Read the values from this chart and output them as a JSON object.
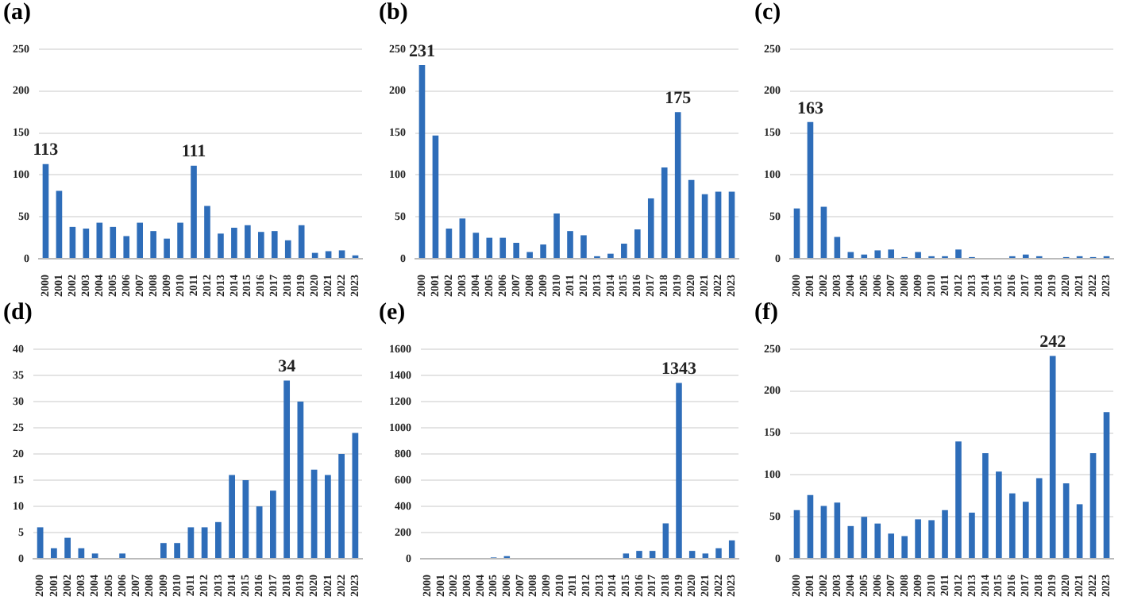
{
  "chart_data": [
    {
      "type": "bar",
      "title": "(a)",
      "categories": [
        "2000",
        "2001",
        "2002",
        "2003",
        "2004",
        "2005",
        "2006",
        "2007",
        "2008",
        "2009",
        "2010",
        "2011",
        "2012",
        "2013",
        "2014",
        "2015",
        "2016",
        "2017",
        "2018",
        "2019",
        "2020",
        "2021",
        "2022",
        "2023"
      ],
      "color": "#2e6db9",
      "values": [
        113,
        81,
        38,
        36,
        43,
        38,
        27,
        43,
        33,
        24,
        43,
        111,
        63,
        30,
        37,
        40,
        32,
        33,
        22,
        40,
        7,
        9,
        10,
        4
      ],
      "value_labels": [
        "113",
        null,
        null,
        null,
        null,
        null,
        null,
        null,
        null,
        null,
        null,
        "111",
        null,
        null,
        null,
        null,
        null,
        null,
        null,
        null,
        null,
        null,
        null,
        null
      ],
      "ylim": [
        0,
        250
      ],
      "yticks": [
        0,
        50,
        100,
        150,
        200,
        250
      ],
      "grid": "y"
    },
    {
      "type": "bar",
      "title": "(b)",
      "categories": [
        "2000",
        "2001",
        "2002",
        "2003",
        "2004",
        "2005",
        "2006",
        "2007",
        "2008",
        "2009",
        "2010",
        "2011",
        "2012",
        "2013",
        "2014",
        "2015",
        "2016",
        "2017",
        "2018",
        "2019",
        "2020",
        "2021",
        "2022",
        "2023"
      ],
      "color": "#2e6db9",
      "values": [
        231,
        147,
        36,
        48,
        31,
        25,
        25,
        19,
        8,
        17,
        54,
        33,
        28,
        3,
        6,
        18,
        35,
        72,
        109,
        175,
        94,
        77,
        80,
        80
      ],
      "value_labels": [
        "231",
        null,
        null,
        null,
        null,
        null,
        null,
        null,
        null,
        null,
        null,
        null,
        null,
        null,
        null,
        null,
        null,
        null,
        null,
        "175",
        null,
        null,
        null,
        null
      ],
      "ylim": [
        0,
        250
      ],
      "yticks": [
        0,
        50,
        100,
        150,
        200,
        250
      ],
      "grid": "y"
    },
    {
      "type": "bar",
      "title": "(c)",
      "categories": [
        "2000",
        "2001",
        "2002",
        "2003",
        "2004",
        "2005",
        "2006",
        "2007",
        "2008",
        "2009",
        "2010",
        "2011",
        "2012",
        "2013",
        "2014",
        "2015",
        "2016",
        "2017",
        "2018",
        "2019",
        "2020",
        "2021",
        "2022",
        "2023"
      ],
      "color": "#2e6db9",
      "values": [
        60,
        163,
        62,
        26,
        8,
        5,
        10,
        11,
        2,
        8,
        3,
        3,
        11,
        2,
        0,
        0,
        3,
        5,
        3,
        0,
        2,
        3,
        2,
        3
      ],
      "value_labels": [
        null,
        "163",
        null,
        null,
        null,
        null,
        null,
        null,
        null,
        null,
        null,
        null,
        null,
        null,
        null,
        null,
        null,
        null,
        null,
        null,
        null,
        null,
        null,
        null
      ],
      "ylim": [
        0,
        250
      ],
      "yticks": [
        0,
        50,
        100,
        150,
        200,
        250
      ],
      "grid": "y"
    },
    {
      "type": "bar",
      "title": "(d)",
      "categories": [
        "2000",
        "2001",
        "2002",
        "2003",
        "2004",
        "2005",
        "2006",
        "2007",
        "2008",
        "2009",
        "2010",
        "2011",
        "2012",
        "2013",
        "2014",
        "2015",
        "2016",
        "2017",
        "2018",
        "2019",
        "2020",
        "2021",
        "2022",
        "2023"
      ],
      "color": "#2e6db9",
      "values": [
        6,
        2,
        4,
        2,
        1,
        0,
        1,
        0,
        0,
        3,
        3,
        6,
        6,
        7,
        16,
        15,
        10,
        13,
        34,
        30,
        17,
        16,
        20,
        24
      ],
      "value_labels": [
        null,
        null,
        null,
        null,
        null,
        null,
        null,
        null,
        null,
        null,
        null,
        null,
        null,
        null,
        null,
        null,
        null,
        null,
        "34",
        null,
        null,
        null,
        null,
        null
      ],
      "ylim": [
        0,
        40
      ],
      "yticks": [
        0,
        5,
        10,
        15,
        20,
        25,
        30,
        35,
        40
      ],
      "grid": "y"
    },
    {
      "type": "bar",
      "title": "(e)",
      "categories": [
        "2000",
        "2001",
        "2002",
        "2003",
        "2004",
        "2005",
        "2006",
        "2007",
        "2008",
        "2009",
        "2010",
        "2011",
        "2012",
        "2013",
        "2014",
        "2015",
        "2016",
        "2017",
        "2018",
        "2019",
        "2020",
        "2021",
        "2022",
        "2023"
      ],
      "color": "#2e6db9",
      "values": [
        0,
        0,
        0,
        0,
        0,
        10,
        20,
        0,
        0,
        0,
        0,
        0,
        0,
        0,
        0,
        40,
        60,
        60,
        270,
        1343,
        60,
        40,
        80,
        140
      ],
      "value_labels": [
        null,
        null,
        null,
        null,
        null,
        null,
        null,
        null,
        null,
        null,
        null,
        null,
        null,
        null,
        null,
        null,
        null,
        null,
        null,
        "1343",
        null,
        null,
        null,
        null
      ],
      "ylim": [
        0,
        1600
      ],
      "yticks": [
        0,
        200,
        400,
        600,
        800,
        1000,
        1200,
        1400,
        1600
      ],
      "grid": "y"
    },
    {
      "type": "bar",
      "title": "(f)",
      "categories": [
        "2000",
        "2001",
        "2002",
        "2003",
        "2004",
        "2005",
        "2006",
        "2007",
        "2008",
        "2009",
        "2010",
        "2011",
        "2012",
        "2013",
        "2014",
        "2015",
        "2016",
        "2017",
        "2018",
        "2019",
        "2020",
        "2021",
        "2022",
        "2023"
      ],
      "color": "#2e6db9",
      "values": [
        58,
        76,
        63,
        67,
        39,
        50,
        42,
        30,
        27,
        47,
        46,
        58,
        140,
        55,
        126,
        104,
        78,
        68,
        96,
        242,
        90,
        65,
        126,
        175
      ],
      "value_labels": [
        null,
        null,
        null,
        null,
        null,
        null,
        null,
        null,
        null,
        null,
        null,
        null,
        null,
        null,
        null,
        null,
        null,
        null,
        null,
        "242",
        null,
        null,
        null,
        null
      ],
      "ylim": [
        0,
        250
      ],
      "yticks": [
        0,
        50,
        100,
        150,
        200,
        250
      ],
      "grid": "y"
    }
  ]
}
